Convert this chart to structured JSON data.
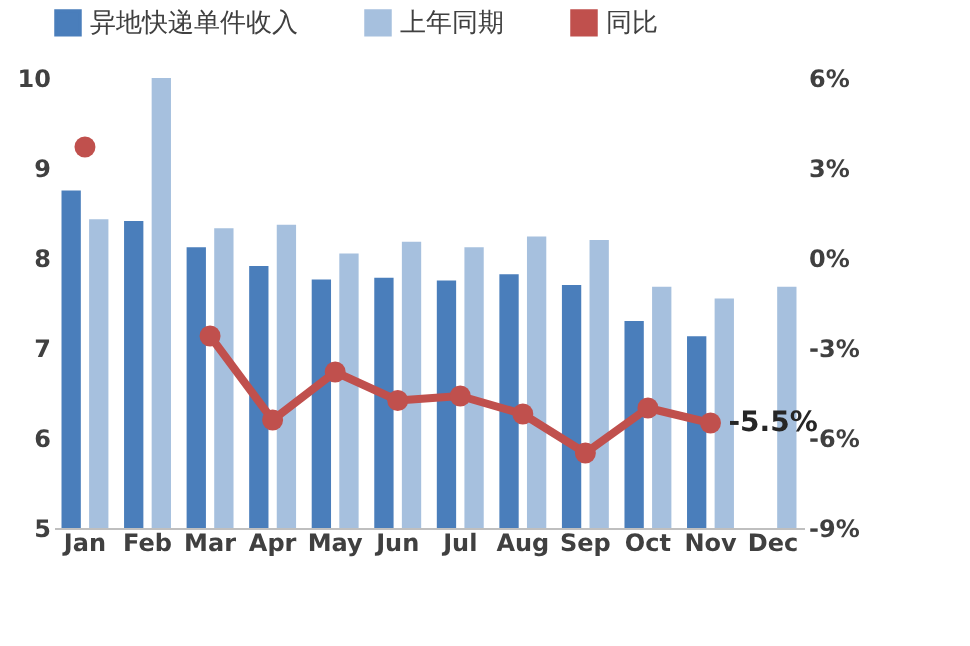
{
  "chart_data": {
    "type": "bar",
    "categories": [
      "Jan",
      "Feb",
      "Mar",
      "Apr",
      "May",
      "Jun",
      "Jul",
      "Aug",
      "Sep",
      "Oct",
      "Nov",
      "Dec"
    ],
    "series": [
      {
        "name": "异地快递单件收入",
        "color": "#4a7ebb",
        "values": [
          8.75,
          8.41,
          8.12,
          7.91,
          7.76,
          7.78,
          7.75,
          7.82,
          7.7,
          7.3,
          7.13,
          null
        ]
      },
      {
        "name": "上年同期",
        "color": "#a6c0de",
        "values": [
          8.43,
          10.0,
          8.33,
          8.37,
          8.05,
          8.18,
          8.12,
          8.24,
          8.2,
          7.68,
          7.55,
          7.68
        ]
      },
      {
        "name": "同比",
        "type": "line",
        "axis": "y2",
        "color": "#c0504d",
        "marker": "circle",
        "values": [
          3.7,
          null,
          -2.6,
          -5.4,
          -3.8,
          -4.75,
          -4.6,
          -5.2,
          -6.5,
          -5.0,
          -5.5,
          null
        ],
        "value_labels": [
          null,
          null,
          null,
          null,
          null,
          null,
          null,
          null,
          null,
          null,
          "-5.5%",
          null
        ]
      }
    ],
    "ylim": [
      5,
      10
    ],
    "yticks": [
      5,
      6,
      7,
      8,
      9,
      10
    ],
    "y2lim": [
      -9,
      6
    ],
    "y2ticks": [
      {
        "value": -9,
        "label": "-9%"
      },
      {
        "value": -6,
        "label": "-6%"
      },
      {
        "value": -3,
        "label": "-3%"
      },
      {
        "value": 0,
        "label": "0%"
      },
      {
        "value": 3,
        "label": "3%"
      },
      {
        "value": 6,
        "label": "6%"
      }
    ],
    "grid": false,
    "legend": "top"
  }
}
